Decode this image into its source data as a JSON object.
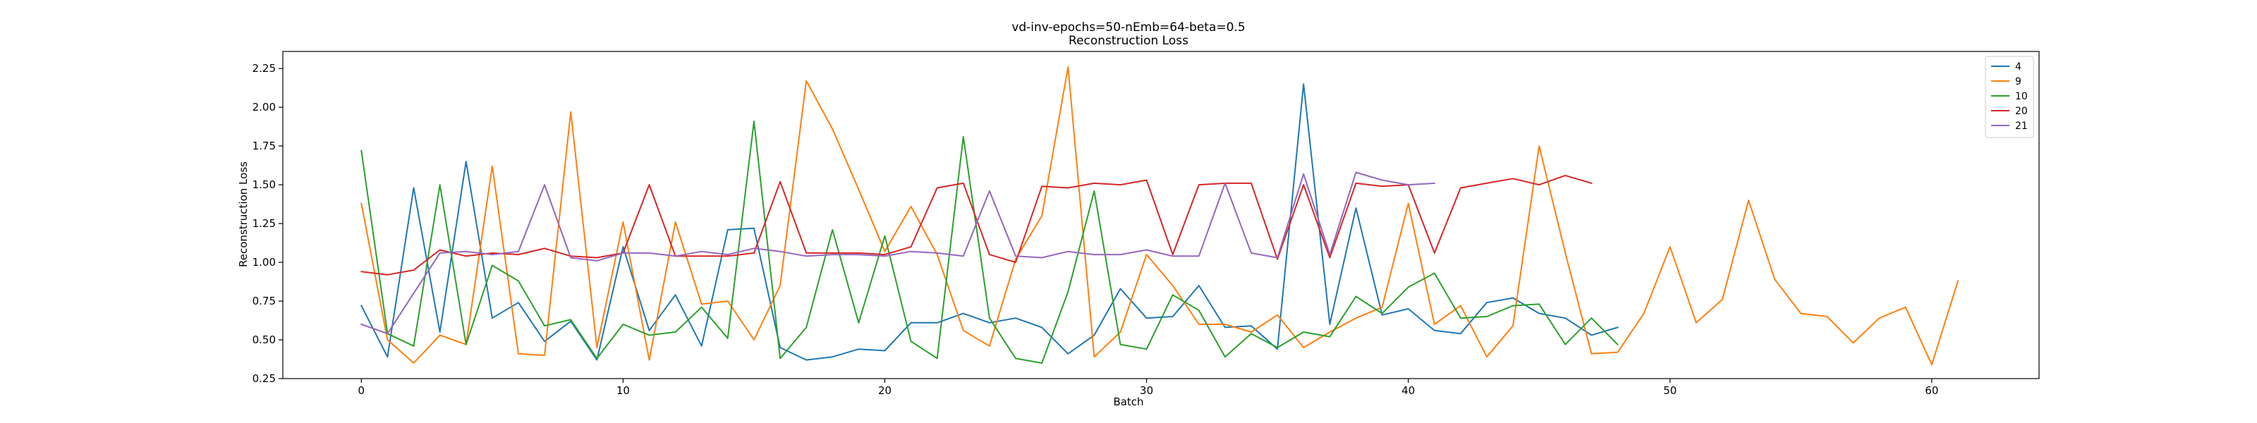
{
  "chart_data": {
    "type": "line",
    "title": "vd-inv-epochs=50-nEmb=64-beta=0.5",
    "subtitle": "Reconstruction Loss",
    "xlabel": "Batch",
    "ylabel": "Reconstruction Loss",
    "xlim": [
      -3,
      64.1
    ],
    "ylim": [
      0.25,
      2.36
    ],
    "xticks": [
      0,
      10,
      20,
      30,
      40,
      50,
      60
    ],
    "yticks": [
      0.25,
      0.5,
      0.75,
      1.0,
      1.25,
      1.5,
      1.75,
      2.0,
      2.25
    ],
    "ytick_labels": [
      "0.25",
      "0.50",
      "0.75",
      "1.00",
      "1.25",
      "1.50",
      "1.75",
      "2.00",
      "2.25"
    ],
    "grid": false,
    "legend_position": "top-right",
    "series": [
      {
        "name": "4",
        "color": "#1f77b4",
        "values": [
          0.72,
          0.39,
          1.48,
          0.55,
          1.65,
          0.64,
          0.74,
          0.49,
          0.62,
          0.37,
          1.1,
          0.56,
          0.79,
          0.46,
          1.21,
          1.22,
          0.45,
          0.37,
          0.39,
          0.44,
          0.43,
          0.61,
          0.61,
          0.67,
          0.61,
          0.64,
          0.58,
          0.41,
          0.53,
          0.83,
          0.64,
          0.65,
          0.85,
          0.58,
          0.59,
          0.44,
          2.15,
          0.6,
          1.35,
          0.66,
          0.7,
          0.56,
          0.54,
          0.74,
          0.77,
          0.67,
          0.64,
          0.53,
          0.58
        ]
      },
      {
        "name": "9",
        "color": "#ff7f0e",
        "values": [
          1.38,
          0.5,
          0.35,
          0.53,
          0.47,
          1.62,
          0.41,
          0.4,
          1.97,
          0.45,
          1.26,
          0.37,
          1.26,
          0.73,
          0.75,
          0.5,
          0.85,
          2.17,
          1.86,
          1.47,
          1.07,
          1.36,
          1.05,
          0.56,
          0.46,
          1.02,
          1.3,
          2.26,
          0.39,
          0.55,
          1.05,
          0.85,
          0.6,
          0.6,
          0.55,
          0.66,
          0.45,
          0.55,
          0.64,
          0.71,
          1.38,
          0.6,
          0.72,
          0.39,
          0.59,
          1.75,
          1.06,
          0.41,
          0.42,
          0.67,
          1.1,
          0.61,
          0.76,
          1.4,
          0.89,
          0.67,
          0.65,
          0.48,
          0.64,
          0.71,
          0.34,
          0.88
        ]
      },
      {
        "name": "10",
        "color": "#2ca02c",
        "values": [
          1.72,
          0.54,
          0.46,
          1.5,
          0.47,
          0.98,
          0.88,
          0.59,
          0.63,
          0.38,
          0.6,
          0.53,
          0.55,
          0.71,
          0.51,
          1.91,
          0.38,
          0.58,
          1.21,
          0.61,
          1.17,
          0.49,
          0.38,
          1.81,
          0.64,
          0.38,
          0.35,
          0.81,
          1.46,
          0.47,
          0.44,
          0.79,
          0.69,
          0.39,
          0.54,
          0.45,
          0.55,
          0.52,
          0.78,
          0.67,
          0.84,
          0.93,
          0.64,
          0.65,
          0.72,
          0.73,
          0.47,
          0.64,
          0.47
        ]
      },
      {
        "name": "20",
        "color": "#d62728",
        "values": [
          0.94,
          0.92,
          0.95,
          1.08,
          1.04,
          1.06,
          1.05,
          1.09,
          1.04,
          1.03,
          1.06,
          1.5,
          1.04,
          1.04,
          1.04,
          1.06,
          1.52,
          1.06,
          1.06,
          1.06,
          1.05,
          1.1,
          1.48,
          1.51,
          1.05,
          1.0,
          1.49,
          1.48,
          1.51,
          1.5,
          1.53,
          1.05,
          1.5,
          1.51,
          1.51,
          1.02,
          1.5,
          1.03,
          1.51,
          1.49,
          1.5,
          1.06,
          1.48,
          1.51,
          1.54,
          1.5,
          1.56,
          1.51
        ]
      },
      {
        "name": "21",
        "color": "#9467bd",
        "values": [
          0.6,
          0.54,
          0.8,
          1.06,
          1.07,
          1.05,
          1.07,
          1.5,
          1.03,
          1.01,
          1.06,
          1.06,
          1.04,
          1.07,
          1.05,
          1.09,
          1.07,
          1.04,
          1.05,
          1.05,
          1.04,
          1.07,
          1.06,
          1.04,
          1.46,
          1.04,
          1.03,
          1.07,
          1.05,
          1.05,
          1.08,
          1.04,
          1.04,
          1.51,
          1.06,
          1.03,
          1.57,
          1.05,
          1.58,
          1.53,
          1.5,
          1.51
        ]
      }
    ]
  }
}
